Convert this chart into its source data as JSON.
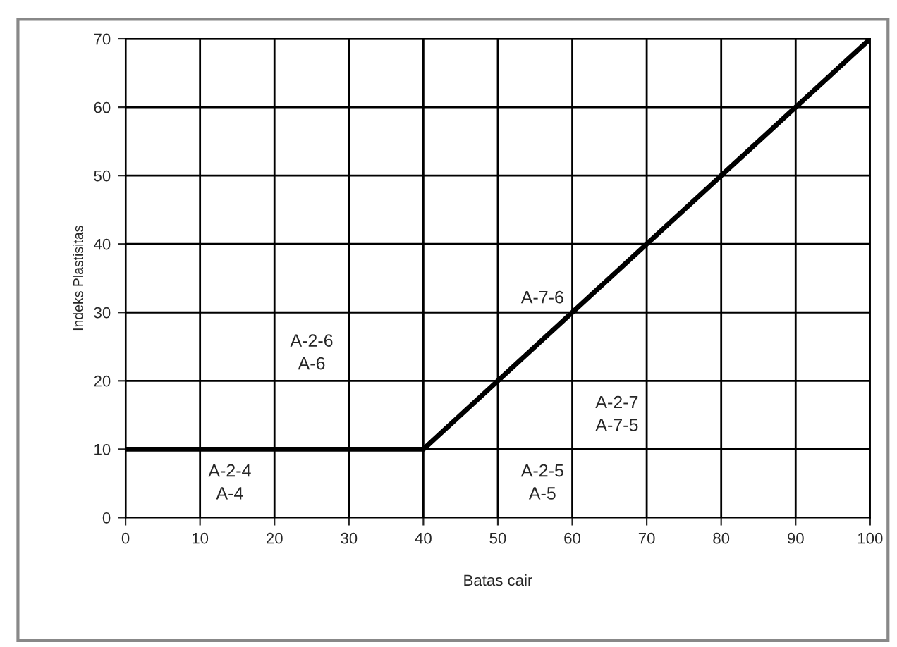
{
  "chart_data": {
    "type": "line",
    "xlabel": "Batas cair",
    "ylabel": "Indeks Plastisitas",
    "x": [
      0,
      40,
      100
    ],
    "series": [
      {
        "color": "#000000",
        "values": [
          10,
          10,
          70
        ]
      }
    ],
    "xlim": [
      0,
      100
    ],
    "ylim": [
      0,
      70
    ],
    "xticks": [
      0,
      10,
      20,
      30,
      40,
      50,
      60,
      70,
      80,
      90,
      100
    ],
    "yticks": [
      0,
      10,
      20,
      30,
      40,
      50,
      60,
      70
    ],
    "grid": true,
    "marker": "none",
    "line_style": "solid",
    "annotations": [
      {
        "text": "A-2-4\nA-4",
        "x": 14,
        "y": 5
      },
      {
        "text": "A-2-6\nA-6",
        "x": 25,
        "y": 24
      },
      {
        "text": "A-7-6",
        "x": 56,
        "y": 32
      },
      {
        "text": "A-2-7\nA-7-5",
        "x": 66,
        "y": 15
      },
      {
        "text": "A-2-5\nA-5",
        "x": 56,
        "y": 5
      }
    ]
  }
}
